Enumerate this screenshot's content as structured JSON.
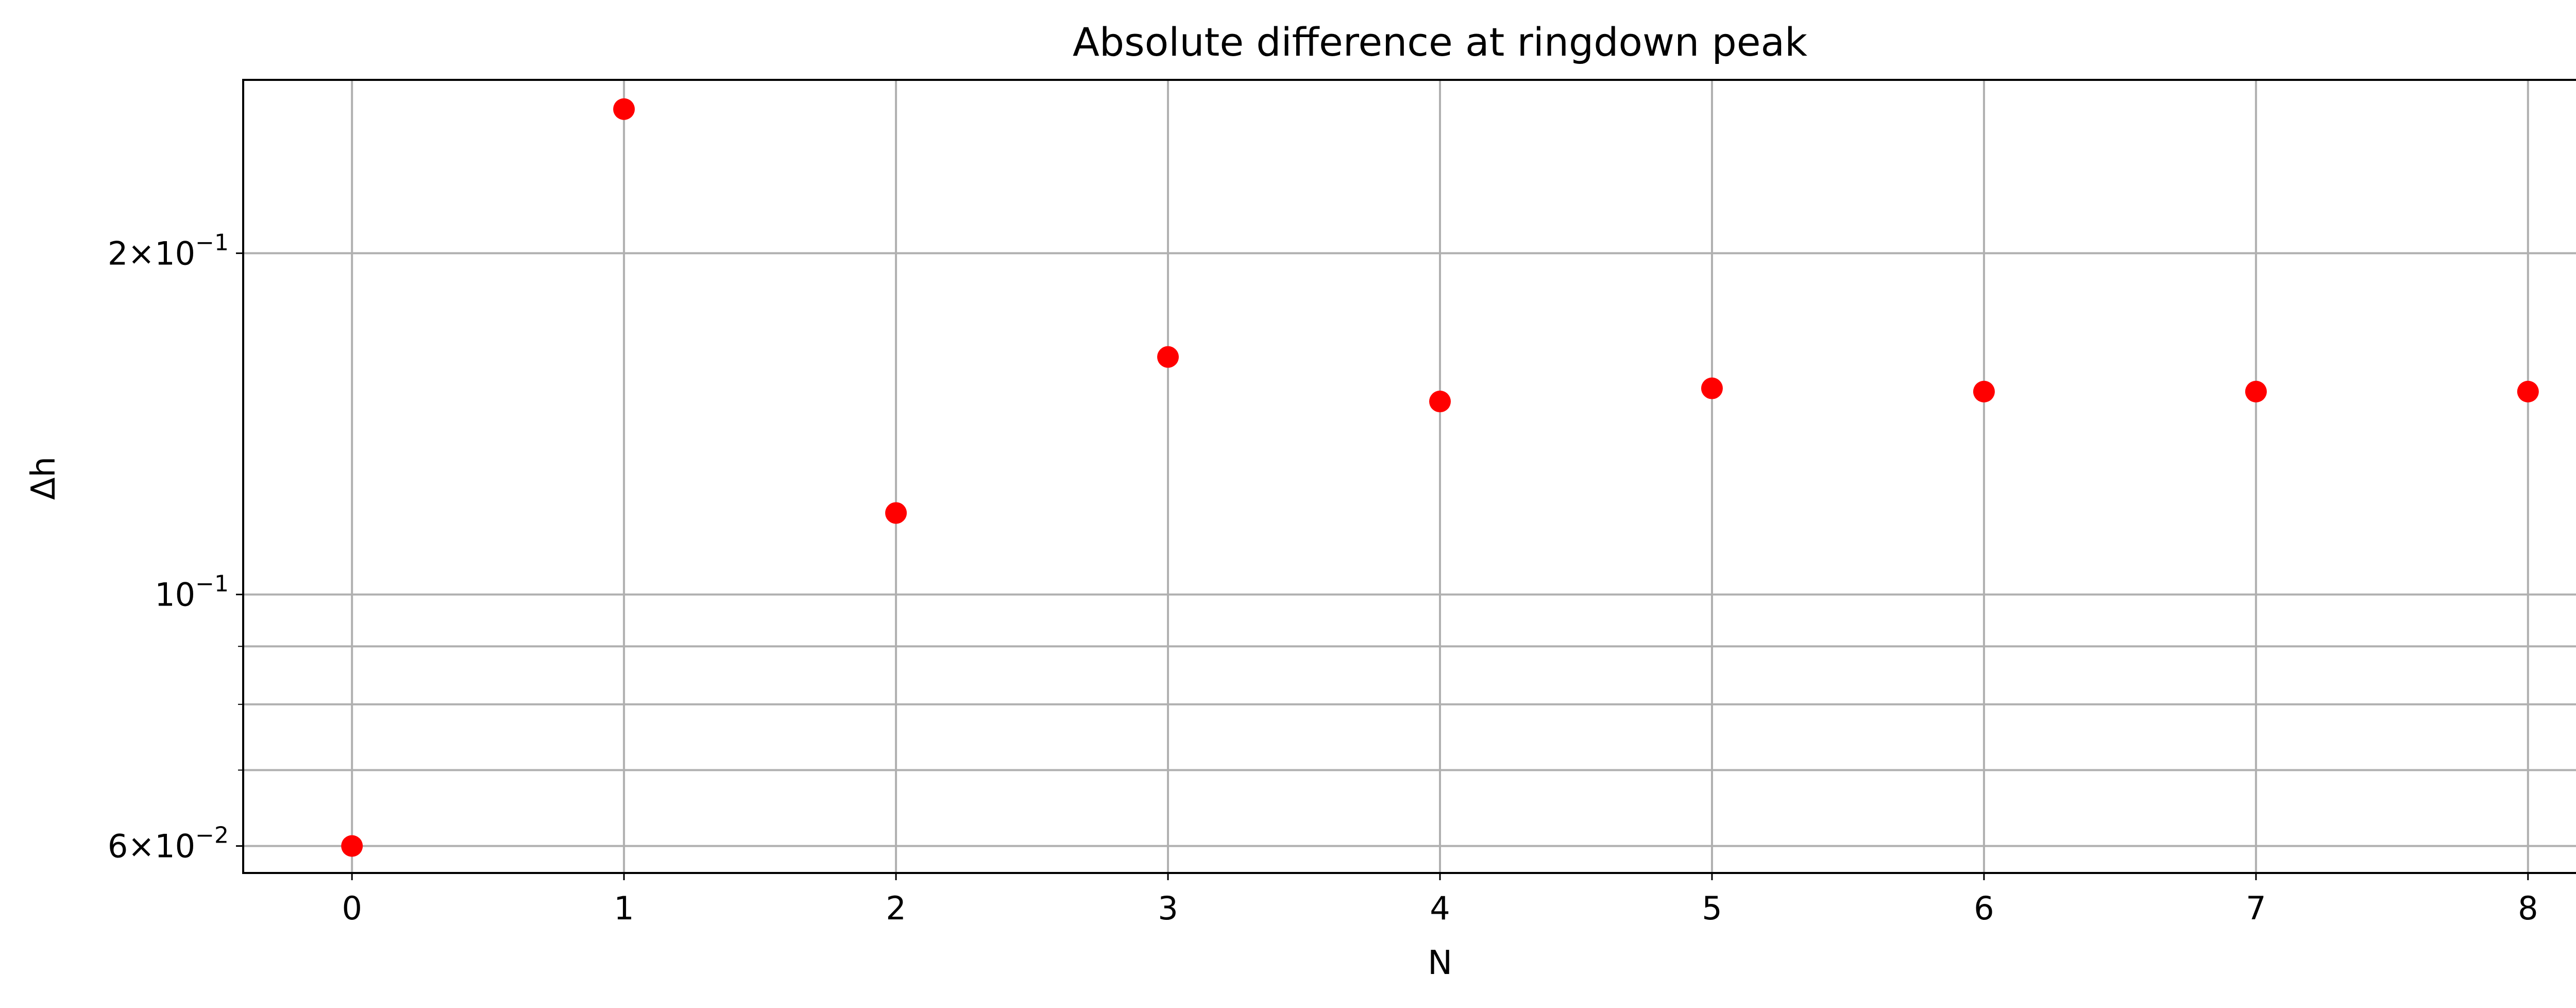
{
  "chart_data": {
    "type": "scatter",
    "title": "Absolute difference at ringdown peak",
    "xlabel": "N",
    "ylabel": "Δh",
    "x_ticks": [
      "0",
      "1",
      "2",
      "3",
      "4",
      "5",
      "6",
      "7",
      "8"
    ],
    "y_scale": "log",
    "y_ticks": [
      {
        "value": 0.06,
        "mantissa": "6",
        "base": "10",
        "exponent": "−2"
      },
      {
        "value": 0.1,
        "mantissa": "",
        "base": "10",
        "exponent": "−1"
      },
      {
        "value": 0.2,
        "mantissa": "2",
        "base": "10",
        "exponent": "−1"
      }
    ],
    "y_minor_gridlines": [
      0.07,
      0.08,
      0.09
    ],
    "xlim": [
      -0.4,
      8.4
    ],
    "ylim": [
      0.0568,
      0.2844
    ],
    "grid": true,
    "marker_color": "#ff0000",
    "grid_color": "#b0b0b0",
    "series": [
      {
        "x": [
          0,
          1,
          2,
          3,
          4,
          5,
          6,
          7,
          8
        ],
        "y": [
          0.06,
          0.268,
          0.118,
          0.162,
          0.148,
          0.152,
          0.151,
          0.151,
          0.151
        ]
      }
    ]
  }
}
